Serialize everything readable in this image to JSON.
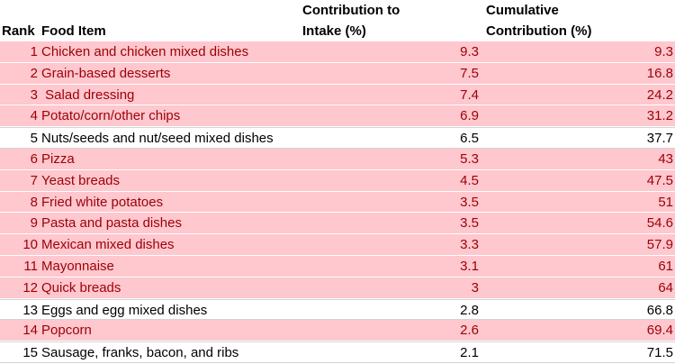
{
  "table": {
    "columns": {
      "rank": "Rank",
      "food": "Food Item",
      "contribution": "Contribution to Intake (%)",
      "cumulative": "Cumulative Contribution (%)"
    },
    "header_lines": {
      "contribution_line1": "Contribution to",
      "contribution_line2": "Intake (%)",
      "cumulative_line1": "Cumulative",
      "cumulative_line2": "Contribution (%)"
    },
    "highlight_fill": "#ffc7ce",
    "highlight_text": "#9c0006",
    "rows": [
      {
        "rank": "1",
        "food": "Chicken and chicken mixed dishes",
        "contribution": "9.3",
        "cumulative": "9.3",
        "highlighted": true
      },
      {
        "rank": "2",
        "food": "Grain-based desserts",
        "contribution": "7.5",
        "cumulative": "16.8",
        "highlighted": true
      },
      {
        "rank": "3",
        "food": " Salad dressing",
        "contribution": "7.4",
        "cumulative": "24.2",
        "highlighted": true
      },
      {
        "rank": "4",
        "food": "Potato/corn/other chips",
        "contribution": "6.9",
        "cumulative": "31.2",
        "highlighted": true
      },
      {
        "rank": "5",
        "food": "Nuts/seeds and nut/seed mixed dishes",
        "contribution": "6.5",
        "cumulative": "37.7",
        "highlighted": false
      },
      {
        "rank": "6",
        "food": "Pizza",
        "contribution": "5.3",
        "cumulative": "43",
        "highlighted": true
      },
      {
        "rank": "7",
        "food": "Yeast breads",
        "contribution": "4.5",
        "cumulative": "47.5",
        "highlighted": true
      },
      {
        "rank": "8",
        "food": "Fried white potatoes",
        "contribution": "3.5",
        "cumulative": "51",
        "highlighted": true
      },
      {
        "rank": "9",
        "food": "Pasta and pasta dishes",
        "contribution": "3.5",
        "cumulative": "54.6",
        "highlighted": true
      },
      {
        "rank": "10",
        "food": "Mexican mixed dishes",
        "contribution": "3.3",
        "cumulative": "57.9",
        "highlighted": true
      },
      {
        "rank": "11",
        "food": "Mayonnaise",
        "contribution": "3.1",
        "cumulative": "61",
        "highlighted": true
      },
      {
        "rank": "12",
        "food": "Quick breads",
        "contribution": "3",
        "cumulative": "64",
        "highlighted": true
      },
      {
        "rank": "13",
        "food": "Eggs and egg mixed dishes",
        "contribution": "2.8",
        "cumulative": "66.8",
        "highlighted": false
      },
      {
        "rank": "14",
        "food": "Popcorn",
        "contribution": "2.6",
        "cumulative": "69.4",
        "highlighted": true
      },
      {
        "rank": "15",
        "food": "Sausage, franks, bacon, and ribs",
        "contribution": "2.1",
        "cumulative": "71.5",
        "highlighted": false
      }
    ]
  }
}
